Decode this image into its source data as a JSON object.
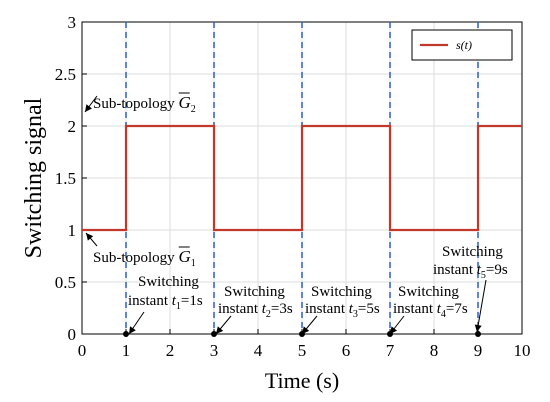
{
  "chart_data": {
    "type": "line",
    "xlabel": "Time (s)",
    "ylabel": "Switching signal",
    "xlim": [
      0,
      10
    ],
    "ylim": [
      0,
      3
    ],
    "x_ticks": [
      "0",
      "1",
      "2",
      "3",
      "4",
      "5",
      "6",
      "7",
      "8",
      "9",
      "10"
    ],
    "y_ticks": [
      "0",
      "0.5",
      "1",
      "1.5",
      "2",
      "2.5",
      "3"
    ],
    "grid": true,
    "legend_position": "top-right",
    "series": [
      {
        "name": "s(t)",
        "color": "#c0392b",
        "step": true,
        "x": [
          0,
          1,
          1,
          3,
          3,
          5,
          5,
          7,
          7,
          9,
          9,
          10
        ],
        "y": [
          1,
          1,
          2,
          2,
          1,
          1,
          2,
          2,
          1,
          1,
          2,
          2
        ]
      }
    ],
    "switching_instants": [
      1,
      3,
      5,
      7,
      9
    ],
    "instant_line_color": "#3a66c8",
    "annotations": {
      "sub_topology_2": "Sub-topology G̅2",
      "sub_topology_1": "Sub-topology G̅1",
      "instants": [
        {
          "line1": "Switching",
          "line2": "instant t1=1s"
        },
        {
          "line1": "Switching",
          "line2": "instant t2=3s"
        },
        {
          "line1": "Switching",
          "line2": "instant t3=5s"
        },
        {
          "line1": "Switching",
          "line2": "instant t4=7s"
        },
        {
          "line1": "Switching",
          "line2": "instant t5=9s"
        }
      ]
    }
  }
}
